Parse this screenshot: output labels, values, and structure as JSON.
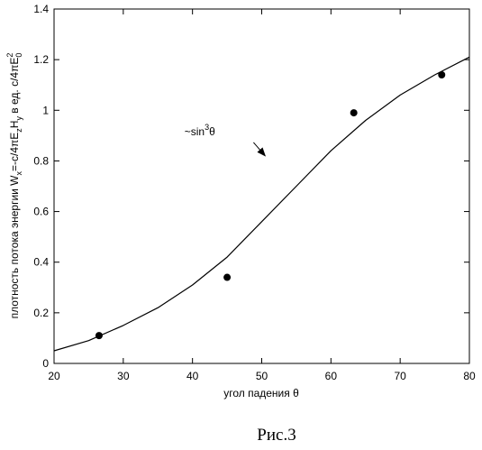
{
  "chart_data": {
    "type": "scatter",
    "xlim": [
      20,
      80
    ],
    "ylim": [
      0,
      1.4
    ],
    "x_ticks": [
      "20",
      "30",
      "40",
      "50",
      "60",
      "70",
      "80"
    ],
    "y_ticks": [
      "0",
      "0.2",
      "0.4",
      "0.6",
      "0.8",
      "1",
      "1.2",
      "1.4"
    ],
    "xlabel": "угол падения θ",
    "ylabel_parts": {
      "pre": "плотность потока энергии W",
      "sub_x": "x",
      "mid1": "=-c/4πE",
      "sub_z": "z",
      "mid2": "H",
      "sub_y": "y",
      "mid3": " в ед. c/4πE",
      "sup_2": "2",
      "sub_0": "0"
    },
    "annotation": {
      "text": "~sin",
      "sup": "3",
      "tail": "θ",
      "arrow_from": [
        54.8,
        0.93
      ],
      "arrow_to": [
        50.5,
        0.82
      ],
      "text_at": [
        55.5,
        0.93
      ]
    },
    "series": [
      {
        "kind": "line",
        "x": [
          20,
          25,
          30,
          35,
          40,
          45,
          50,
          55,
          60,
          65,
          70,
          75,
          80
        ],
        "y": [
          0.05,
          0.09,
          0.15,
          0.22,
          0.31,
          0.42,
          0.56,
          0.7,
          0.84,
          0.96,
          1.06,
          1.14,
          1.21
        ]
      },
      {
        "kind": "points",
        "x": [
          26.5,
          45,
          63.3,
          76
        ],
        "y": [
          0.11,
          0.34,
          0.99,
          1.14
        ]
      }
    ]
  },
  "caption": "Рис.3"
}
